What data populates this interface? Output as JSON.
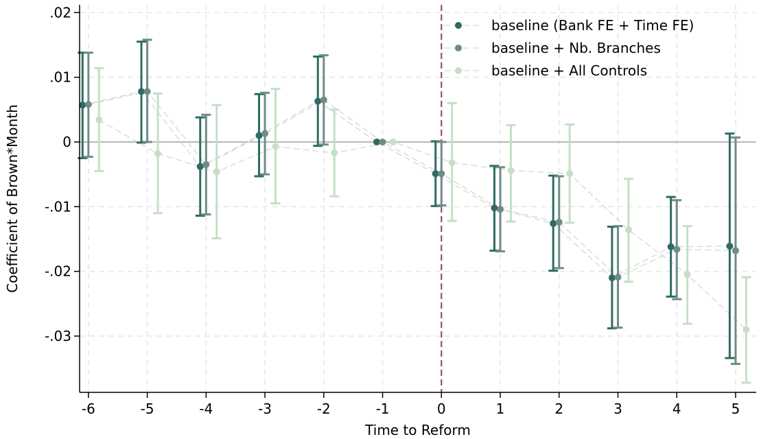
{
  "chart_data": {
    "type": "scatter",
    "title": "",
    "xlabel": "Time to Reform",
    "ylabel": "Coefficient of Brown*Month",
    "xlim": [
      -6.15,
      5.35
    ],
    "ylim": [
      -0.0387,
      0.0212
    ],
    "x_ticks": [
      -6,
      -5,
      -4,
      -3,
      -2,
      -1,
      0,
      1,
      2,
      3,
      4,
      5
    ],
    "x_tick_labels": [
      "-6",
      "-5",
      "-4",
      "-3",
      "-2",
      "-1",
      "0",
      "1",
      "2",
      "3",
      "4",
      "5"
    ],
    "y_ticks": [
      0.02,
      0.01,
      0,
      -0.01,
      -0.02,
      -0.03
    ],
    "y_tick_labels": [
      ".02",
      ".01",
      "0",
      "-.01",
      "-.02",
      "-.03"
    ],
    "grid": true,
    "reference_lines": {
      "horizontal_zero": true,
      "vertical_x": 0,
      "vertical_color": "#9b3a44"
    },
    "legend_position": "top-right",
    "x": [
      -6,
      -5,
      -4,
      -3,
      -2,
      -1,
      0,
      1,
      2,
      3,
      4,
      5
    ],
    "series": [
      {
        "name": "baseline (Bank FE + Time FE)",
        "color": "#2f6b63",
        "x_offset": -0.1,
        "values": [
          0.0057,
          0.0078,
          -0.0038,
          0.001,
          0.0063,
          0.0,
          -0.0049,
          -0.0102,
          -0.0126,
          -0.021,
          -0.0162,
          -0.0161
        ],
        "ci_low": [
          -0.0025,
          -0.0001,
          -0.0114,
          -0.0053,
          -0.0006,
          null,
          -0.0099,
          -0.0168,
          -0.0199,
          -0.0288,
          -0.0239,
          -0.0334
        ],
        "ci_high": [
          0.0138,
          0.0155,
          0.0038,
          0.0074,
          0.0132,
          null,
          0.0001,
          -0.0037,
          -0.0052,
          -0.0131,
          -0.0085,
          0.0013
        ]
      },
      {
        "name": "baseline + Nb. Branches",
        "color": "#6d8d85",
        "x_offset": 0.0,
        "values": [
          0.0058,
          0.0078,
          -0.0035,
          0.0013,
          0.0065,
          0.0,
          -0.0049,
          -0.0104,
          -0.0124,
          -0.0209,
          -0.0166,
          -0.0168
        ],
        "ci_low": [
          -0.0023,
          0.0,
          -0.0112,
          -0.005,
          -0.0004,
          null,
          -0.0098,
          -0.0169,
          -0.0195,
          -0.0287,
          -0.0243,
          -0.0343
        ],
        "ci_high": [
          0.0138,
          0.0158,
          0.0042,
          0.0076,
          0.0134,
          null,
          0.0,
          -0.0039,
          -0.0053,
          -0.013,
          -0.009,
          0.0007
        ]
      },
      {
        "name": "baseline + All Controls",
        "color": "#c6dfc6",
        "x_offset": 0.18,
        "values": [
          0.0034,
          -0.0018,
          -0.0046,
          -0.0007,
          -0.0017,
          0.0,
          -0.0032,
          -0.0044,
          -0.0049,
          -0.0136,
          -0.0205,
          -0.029
        ],
        "ci_low": [
          -0.0045,
          -0.011,
          -0.0149,
          -0.0095,
          -0.0084,
          null,
          -0.0122,
          -0.0123,
          -0.0125,
          -0.0216,
          -0.0281,
          -0.0372
        ],
        "ci_high": [
          0.0114,
          0.0075,
          0.0057,
          0.0082,
          0.005,
          null,
          0.006,
          0.0026,
          0.0027,
          -0.0057,
          -0.013,
          -0.0209
        ]
      }
    ]
  }
}
